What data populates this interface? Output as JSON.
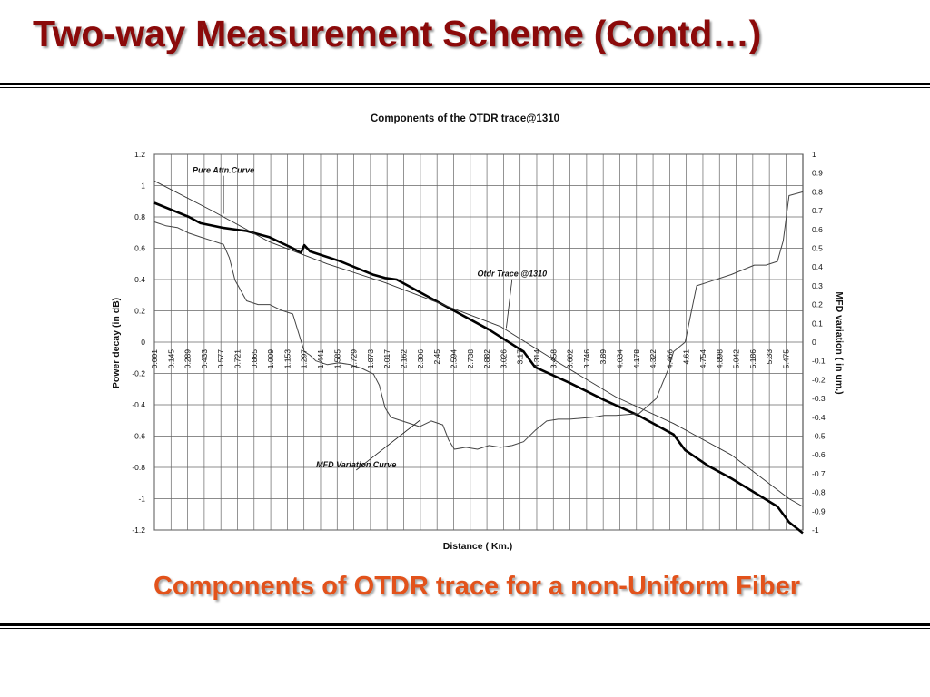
{
  "slide": {
    "title": "Two-way Measurement Scheme (Contd…)",
    "caption": "Components of OTDR trace for a non-Uniform Fiber",
    "title_color": "#8b0a0a",
    "caption_color": "#e2521b"
  },
  "chart_data": {
    "type": "line",
    "title": "Components of the OTDR trace@1310",
    "xlabel": "Distance ( Km.)",
    "ylabel": "Power decay (in dB)",
    "y2label": "MFD variation ( in um.)",
    "ylim": [
      -1.2,
      1.2
    ],
    "y2lim": [
      -1,
      1
    ],
    "yticks": [
      "1.2",
      "1",
      "0.8",
      "0.6",
      "0.4",
      "0.2",
      "0",
      "-0.2",
      "-0.4",
      "-0.6",
      "-0.8",
      "-1",
      "-1.2"
    ],
    "y2ticks": [
      "1",
      "0.9",
      "0.8",
      "0.7",
      "0.6",
      "0.5",
      "0.4",
      "0.3",
      "0.2",
      "0.1",
      "0",
      "-0.1",
      "-0.2",
      "-0.3",
      "-0.4",
      "-0.5",
      "-0.6",
      "-0.7",
      "-0.8",
      "-0.9",
      "-1"
    ],
    "xlim": [
      0.001,
      5.62
    ],
    "xticks": [
      "0.001",
      "0.145",
      "0.289",
      "0.433",
      "0.577",
      "0.721",
      "0.865",
      "1.009",
      "1.153",
      "1.297",
      "1.441",
      "1.585",
      "1.729",
      "1.873",
      "2.017",
      "2.162",
      "2.306",
      "2.45",
      "2.594",
      "2.738",
      "2.882",
      "3.026",
      "3.17",
      "3.314",
      "3.458",
      "3.602",
      "3.746",
      "3.89",
      "4.034",
      "4.178",
      "4.322",
      "4.466",
      "4.61",
      "4.754",
      "4.898",
      "5.042",
      "5.186",
      "5.33",
      "5.475"
    ],
    "grid": true,
    "series": [
      {
        "name": "Otdr Trace @1310",
        "axis": "left",
        "color": "#000000",
        "x": [
          0.0,
          0.2,
          0.3,
          0.4,
          0.6,
          0.8,
          1.0,
          1.2,
          1.27,
          1.3,
          1.35,
          1.6,
          1.9,
          2.0,
          2.1,
          2.5,
          2.9,
          3.2,
          3.3,
          3.6,
          3.9,
          4.2,
          4.5,
          4.6,
          4.8,
          5.0,
          5.2,
          5.4,
          5.5,
          5.62
        ],
        "y": [
          0.89,
          0.83,
          0.8,
          0.76,
          0.73,
          0.71,
          0.67,
          0.6,
          0.57,
          0.62,
          0.58,
          0.52,
          0.43,
          0.41,
          0.4,
          0.24,
          0.08,
          -0.06,
          -0.16,
          -0.26,
          -0.37,
          -0.47,
          -0.59,
          -0.69,
          -0.79,
          -0.87,
          -0.96,
          -1.05,
          -1.15,
          -1.22
        ]
      },
      {
        "name": "Pure Attn.Curve",
        "axis": "left",
        "color": "#333333",
        "x": [
          0.0,
          0.5,
          1.0,
          1.5,
          2.0,
          2.5,
          3.0,
          3.5,
          4.0,
          4.5,
          5.0,
          5.5,
          5.62
        ],
        "y": [
          1.03,
          0.84,
          0.64,
          0.5,
          0.38,
          0.24,
          0.1,
          -0.13,
          -0.35,
          -0.52,
          -0.72,
          -1.0,
          -1.05
        ]
      },
      {
        "name": "MFD Variation Curve",
        "axis": "right",
        "color": "#444444",
        "x": [
          0.0,
          0.1,
          0.2,
          0.3,
          0.4,
          0.5,
          0.6,
          0.65,
          0.7,
          0.8,
          0.9,
          1.0,
          1.1,
          1.2,
          1.25,
          1.3,
          1.35,
          1.4,
          1.5,
          1.6,
          1.7,
          1.8,
          1.9,
          1.95,
          2.0,
          2.05,
          2.1,
          2.2,
          2.3,
          2.4,
          2.5,
          2.55,
          2.6,
          2.7,
          2.8,
          2.9,
          3.0,
          3.1,
          3.2,
          3.3,
          3.4,
          3.5,
          3.6,
          3.8,
          3.9,
          4.0,
          4.2,
          4.35,
          4.45,
          4.5,
          4.6,
          4.65,
          4.7,
          4.8,
          5.0,
          5.2,
          5.3,
          5.4,
          5.45,
          5.5,
          5.62
        ],
        "y": [
          0.64,
          0.62,
          0.61,
          0.58,
          0.56,
          0.54,
          0.52,
          0.45,
          0.33,
          0.22,
          0.2,
          0.2,
          0.17,
          0.15,
          0.05,
          -0.05,
          -0.07,
          -0.1,
          -0.12,
          -0.11,
          -0.12,
          -0.14,
          -0.17,
          -0.23,
          -0.35,
          -0.4,
          -0.41,
          -0.43,
          -0.45,
          -0.42,
          -0.44,
          -0.52,
          -0.57,
          -0.56,
          -0.57,
          -0.55,
          -0.56,
          -0.55,
          -0.53,
          -0.47,
          -0.42,
          -0.41,
          -0.41,
          -0.4,
          -0.39,
          -0.39,
          -0.38,
          -0.3,
          -0.15,
          -0.05,
          0.0,
          0.15,
          0.3,
          0.32,
          0.36,
          0.41,
          0.41,
          0.43,
          0.54,
          0.78,
          0.8
        ]
      }
    ],
    "annotations": [
      {
        "text": "Pure Attn.Curve",
        "axis": "left",
        "label_x": 0.6,
        "label_y": 1.08,
        "arrow_x": 0.6,
        "arrow_y": 0.82
      },
      {
        "text": "Otdr Trace @1310",
        "axis": "left",
        "label_x": 3.1,
        "label_y": 0.42,
        "arrow_x": 3.05,
        "arrow_y": 0.09
      },
      {
        "text": "MFD Variation Curve",
        "axis": "left",
        "label_x": 1.75,
        "label_y": -0.8,
        "arrow_x": 2.3,
        "arrow_y": -0.5
      }
    ]
  }
}
